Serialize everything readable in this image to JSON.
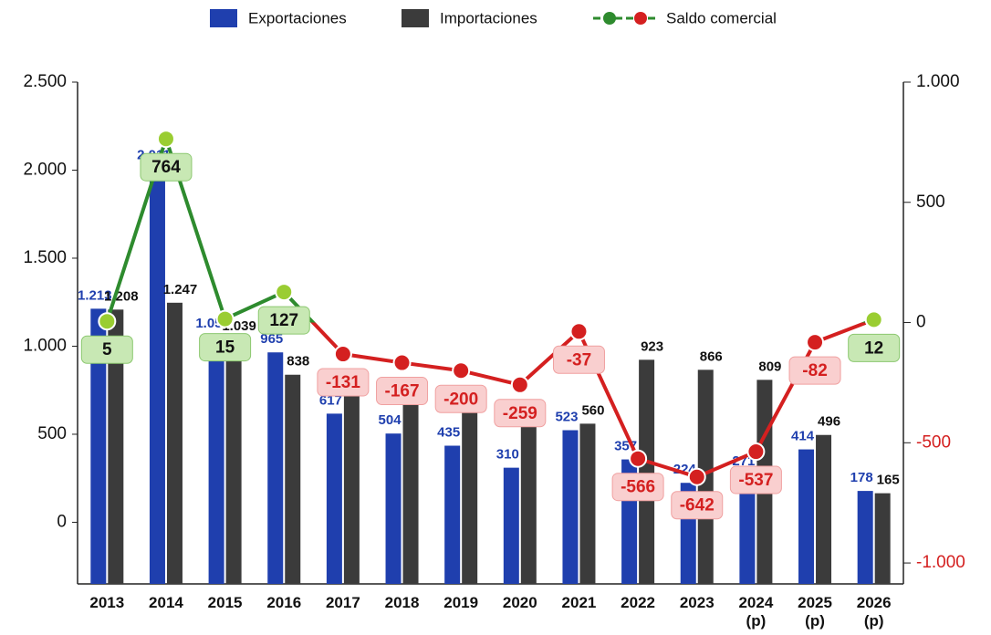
{
  "chart_data": {
    "type": "bar_line",
    "categories": [
      "2013",
      "2014",
      "2015",
      "2016",
      "2017",
      "2018",
      "2019",
      "2020",
      "2021",
      "2022",
      "2023",
      "2024 (p)",
      "2025 (p)",
      "2026 (p)"
    ],
    "series": [
      {
        "name": "Exportaciones",
        "type": "bar",
        "color": "#1f3fae",
        "values": [
          1213,
          2011,
          1054,
          965,
          617,
          504,
          435,
          310,
          523,
          357,
          224,
          271,
          414,
          178
        ],
        "value_labels": [
          "1.213",
          "2.011",
          "1.054",
          "965",
          "617",
          "504",
          "435",
          "310",
          "523",
          "357",
          "224",
          "271",
          "414",
          "178"
        ]
      },
      {
        "name": "Importaciones",
        "type": "bar",
        "color": "#3b3b3b",
        "values": [
          1208,
          1247,
          1039,
          838,
          748,
          671,
          635,
          569,
          560,
          923,
          866,
          809,
          496,
          165
        ],
        "value_labels": [
          "1.208",
          "1.247",
          "1.039",
          "838",
          "748",
          "671",
          "635",
          "569",
          "560",
          "923",
          "866",
          "809",
          "496",
          "165"
        ]
      },
      {
        "name": "Saldo comercial",
        "type": "line",
        "axis": "y2",
        "color": "#2e8b2e",
        "negative_color": "#d42020",
        "values": [
          5,
          764,
          15,
          127,
          -131,
          -167,
          -200,
          -259,
          -37,
          -566,
          -642,
          -537,
          -82,
          12
        ]
      }
    ],
    "ylim": [
      -350,
      2500
    ],
    "yticks": [
      0,
      500,
      {
        "value": 1000,
        "label": "1.000"
      },
      {
        "value": 1500,
        "label": "1.500"
      },
      {
        "value": 2000,
        "label": "2.000"
      },
      {
        "value": 2500,
        "label": "2.500"
      }
    ],
    "y2lim": [
      -1087,
      1000
    ],
    "y2ticks": [
      {
        "value": -1000,
        "label": "-1.000"
      },
      -500,
      0,
      500,
      {
        "value": 1000,
        "label": "1.000"
      }
    ]
  }
}
